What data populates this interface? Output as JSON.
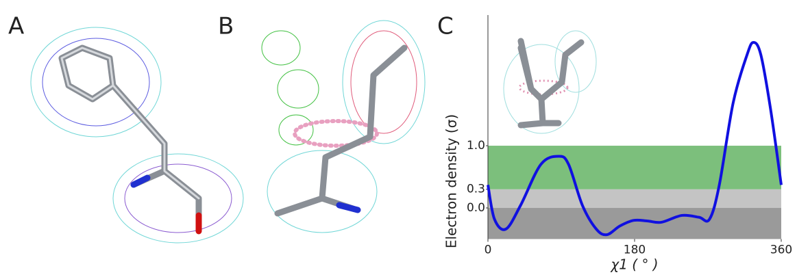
{
  "panels": {
    "a": {
      "label": "A"
    },
    "b": {
      "label": "B"
    }
  },
  "chart_data": {
    "type": "line",
    "panel_label": "C",
    "x_label": "χ1 ( ° )",
    "y_label": "Electron density (σ)",
    "xlim": [
      0,
      360
    ],
    "xticks": [
      0,
      180,
      360
    ],
    "ylim": [
      -0.5,
      3.1
    ],
    "yticks": [
      {
        "value": 0,
        "label": "0.0"
      },
      0.3,
      {
        "value": 1,
        "label": "1.0"
      }
    ],
    "bands": [
      {
        "to": 0,
        "color": "#9a9a9a"
      },
      {
        "from": 0,
        "to": 0.3,
        "color": "#c4c4c4"
      },
      {
        "from": 0.3,
        "to": 1,
        "color": "#7cbf7c"
      }
    ],
    "series": [
      {
        "color": "#1010e0",
        "x": [
          0,
          8,
          22,
          40,
          65,
          87,
          99,
          116,
          133,
          146,
          162,
          179,
          196,
          213,
          238,
          259,
          272,
          284,
          301,
          318,
          326,
          335,
          347,
          360
        ],
        "values": [
          0.37,
          -0.18,
          -0.34,
          0.04,
          0.7,
          0.83,
          0.7,
          0.04,
          -0.34,
          -0.43,
          -0.29,
          -0.2,
          -0.21,
          -0.23,
          -0.12,
          -0.15,
          -0.18,
          0.37,
          1.69,
          2.46,
          2.66,
          2.46,
          1.58,
          0.37
        ]
      }
    ]
  }
}
